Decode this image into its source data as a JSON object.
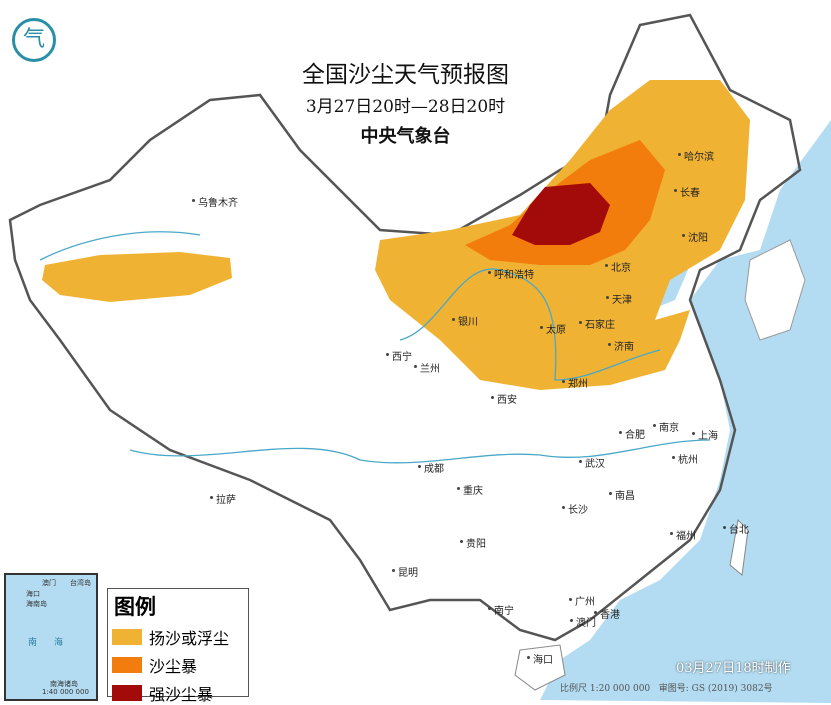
{
  "title": "全国沙尘天气预报图",
  "period": "3月27日20时—28日20时",
  "agency": "中央气象台",
  "legend": {
    "title": "图例",
    "items": [
      {
        "label": "扬沙或浮尘",
        "color": "#f0b233"
      },
      {
        "label": "沙尘暴",
        "color": "#f27c0c"
      },
      {
        "label": "强沙尘暴",
        "color": "#a30a0a"
      }
    ]
  },
  "cities": [
    "乌鲁木齐",
    "哈尔滨",
    "长春",
    "沈阳",
    "呼和浩特",
    "北京",
    "天津",
    "银川",
    "太原",
    "石家庄",
    "济南",
    "西宁",
    "兰州",
    "郑州",
    "西安",
    "合肥",
    "南京",
    "上海",
    "杭州",
    "武汉",
    "成都",
    "重庆",
    "拉萨",
    "长沙",
    "南昌",
    "贵阳",
    "福州",
    "台北",
    "昆明",
    "南宁",
    "广州",
    "香港",
    "澳门",
    "海口"
  ],
  "inset": {
    "labels": [
      "澳门",
      "台湾岛",
      "海口",
      "海南岛",
      "南",
      "海",
      "南海诸岛",
      "1:40 000 000"
    ]
  },
  "made_time": "03月27日18时制作",
  "scale": "比例尺 1:20 000 000",
  "map_number": "审图号: GS (2019) 3082号",
  "colors": {
    "sea": "#b3dcf2",
    "land": "#ffffff",
    "border": "#555555",
    "river": "#4aa8c8"
  }
}
